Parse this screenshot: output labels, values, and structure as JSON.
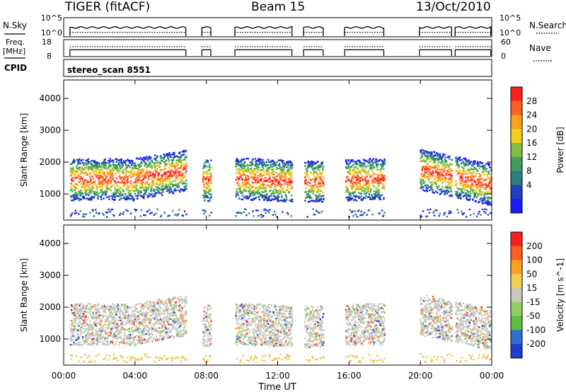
{
  "header": {
    "radar": "TIGER (fitACF)",
    "beam": "Beam 15",
    "date": "13/Oct/2010"
  },
  "left_labels": {
    "nsky": "N.Sky",
    "freq": "Freq.",
    "freq_unit": "[MHz]",
    "cpid": "CPID"
  },
  "right_labels": {
    "nsearch": "N.Search",
    "nave": "Nave"
  },
  "cpid_text": "stereo_scan 8551",
  "colors": {
    "power_scale": [
      "#1a1aff",
      "#1f3fbf",
      "#2f7f7f",
      "#3f9f5f",
      "#7fbf3f",
      "#f5cf1f",
      "#ff9f1f",
      "#ff5f1f",
      "#ff1f1f"
    ],
    "velocity_scale": [
      "#1f3fd0",
      "#2f6fd0",
      "#5fbf3f",
      "#8fd05f",
      "#c8c8c0",
      "#f5d050",
      "#ff9f1f",
      "#ff5f1f",
      "#ff1f1f"
    ],
    "ground_scatter": "#c8c8c0"
  },
  "chart_data": [
    {
      "type": "line",
      "name": "N.Sky / N.Search",
      "ylabel_left": "N.Sky",
      "ylabel_right": "N.Search",
      "y_ticks_left": [
        "10^5",
        "10^0"
      ],
      "y_ticks_right": [
        "10^5",
        "10^0"
      ],
      "data_intervals_hours": [
        [
          0.35,
          6.85
        ],
        [
          7.75,
          8.25
        ],
        [
          9.6,
          12.8
        ],
        [
          13.45,
          14.55
        ],
        [
          15.75,
          17.95
        ],
        [
          19.95,
          21.75
        ],
        [
          21.95,
          23.95
        ]
      ],
      "nsky_level": 0.45,
      "nsearch_level": 0.2
    },
    {
      "type": "line",
      "name": "Freq / Nave",
      "ylabel_left": "Freq. [MHz]",
      "ylabel_right": "Nave",
      "y_ticks_left": [
        "18",
        "8"
      ],
      "y_ticks_right": [
        "60",
        "0"
      ],
      "ylim_left": [
        8,
        18
      ],
      "ylim_right": [
        0,
        60
      ],
      "freq_level_mhz": 12,
      "nave_level": 35
    },
    {
      "type": "heatmap",
      "name": "Power",
      "ylabel": "Slant Range [km]",
      "colorbar_label": "Power [dB]",
      "colorbar_ticks": [
        "28",
        "24",
        "20",
        "16",
        "12",
        "8",
        "4"
      ],
      "colorbar_range": [
        0,
        32
      ],
      "ylim_km": [
        180,
        4580
      ],
      "y_ticks": [
        "4000",
        "3000",
        "2000",
        "1000"
      ],
      "xlim_hours": [
        0,
        24
      ]
    },
    {
      "type": "heatmap",
      "name": "Velocity",
      "ylabel": "Slant Range [km]",
      "colorbar_label": "Velocity [m s^-1]",
      "colorbar_ticks": [
        "200",
        "100",
        "50",
        "15",
        "-15",
        "-50",
        "-100",
        "-200"
      ],
      "ylim_km": [
        180,
        4580
      ],
      "y_ticks": [
        "4000",
        "3000",
        "2000",
        "1000"
      ],
      "xlim_hours": [
        0,
        24
      ],
      "x_ticks": [
        "00:00",
        "04:00",
        "08:00",
        "12:00",
        "16:00",
        "20:00",
        "00:00"
      ],
      "xlabel": "Time UT"
    }
  ]
}
